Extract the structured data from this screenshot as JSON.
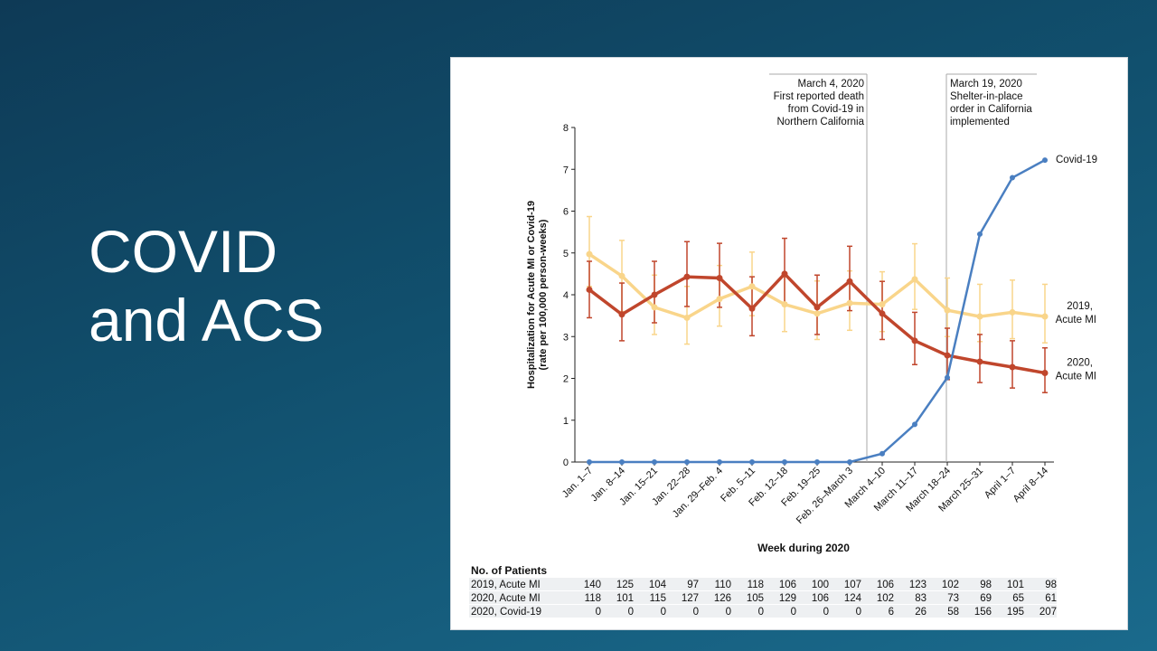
{
  "slide": {
    "title_line1": "COVID",
    "title_line2": "and ACS"
  },
  "chart_data": {
    "type": "line",
    "ylabel_line1": "Hospitalization for Acute MI or Covid-19",
    "ylabel_line2": "(rate per 100,000 person-weeks)",
    "xlabel": "Week during 2020",
    "ylim": [
      0,
      8
    ],
    "yticks": [
      0,
      1,
      2,
      3,
      4,
      5,
      6,
      7,
      8
    ],
    "grid": false,
    "categories": [
      "Jan. 1–7",
      "Jan. 8–14",
      "Jan. 15–21",
      "Jan. 22–28",
      "Jan. 29–Feb. 4",
      "Feb. 5–11",
      "Feb. 12–18",
      "Feb. 19–25",
      "Feb. 26–March 3",
      "March 4–10",
      "March 11–17",
      "March 18–24",
      "March 25–31",
      "April 1–7",
      "April 8–14"
    ],
    "series": [
      {
        "name": "2019, Acute MI",
        "label_line1": "2019,",
        "label_line2": "Acute MI",
        "color": "#f9d58a",
        "values": [
          4.97,
          4.45,
          3.7,
          3.45,
          3.9,
          4.2,
          3.77,
          3.55,
          3.8,
          3.77,
          4.37,
          3.63,
          3.48,
          3.58,
          3.48
        ],
        "lower": [
          4.2,
          3.6,
          3.05,
          2.82,
          3.25,
          3.5,
          3.12,
          2.93,
          3.15,
          3.12,
          3.65,
          3.0,
          2.88,
          2.95,
          2.85
        ],
        "upper": [
          5.87,
          5.3,
          4.47,
          4.2,
          4.7,
          5.02,
          4.43,
          4.33,
          4.57,
          4.55,
          5.22,
          4.4,
          4.25,
          4.35,
          4.25
        ]
      },
      {
        "name": "2020, Acute MI",
        "label_line1": "2020,",
        "label_line2": "Acute MI",
        "color": "#c0462c",
        "values": [
          4.12,
          3.53,
          4.0,
          4.43,
          4.4,
          3.67,
          4.5,
          3.7,
          4.32,
          3.55,
          2.9,
          2.55,
          2.4,
          2.27,
          2.13
        ],
        "lower": [
          3.45,
          2.9,
          3.33,
          3.72,
          3.7,
          3.02,
          3.8,
          3.05,
          3.62,
          2.93,
          2.33,
          1.97,
          1.9,
          1.77,
          1.66
        ],
        "upper": [
          4.8,
          4.28,
          4.8,
          5.27,
          5.23,
          4.43,
          5.35,
          4.47,
          5.16,
          4.32,
          3.58,
          3.2,
          3.05,
          2.9,
          2.73
        ]
      },
      {
        "name": "Covid-19",
        "label_line1": "Covid-19",
        "label_line2": "",
        "color": "#4a7fc1",
        "values": [
          0,
          0,
          0,
          0,
          0,
          0,
          0,
          0,
          0,
          0.2,
          0.9,
          2.02,
          5.45,
          6.8,
          7.22
        ]
      }
    ],
    "annotations": [
      {
        "at": "March 4–10",
        "lines": [
          "March 4, 2020",
          "First reported death",
          "from Covid-19 in",
          "Northern California"
        ]
      },
      {
        "at": "March 18–24",
        "lines": [
          "March 19, 2020",
          "Shelter-in-place",
          "order in California",
          "implemented"
        ]
      }
    ],
    "table": {
      "title": "No. of Patients",
      "rows": [
        {
          "label": "2019, Acute MI",
          "values": [
            140,
            125,
            104,
            97,
            110,
            118,
            106,
            100,
            107,
            106,
            123,
            102,
            98,
            101,
            98
          ]
        },
        {
          "label": "2020, Acute MI",
          "values": [
            118,
            101,
            115,
            127,
            126,
            105,
            129,
            106,
            124,
            102,
            83,
            73,
            69,
            65,
            61
          ]
        },
        {
          "label": "2020, Covid-19",
          "values": [
            0,
            0,
            0,
            0,
            0,
            0,
            0,
            0,
            0,
            6,
            26,
            58,
            156,
            195,
            207
          ]
        }
      ]
    }
  }
}
